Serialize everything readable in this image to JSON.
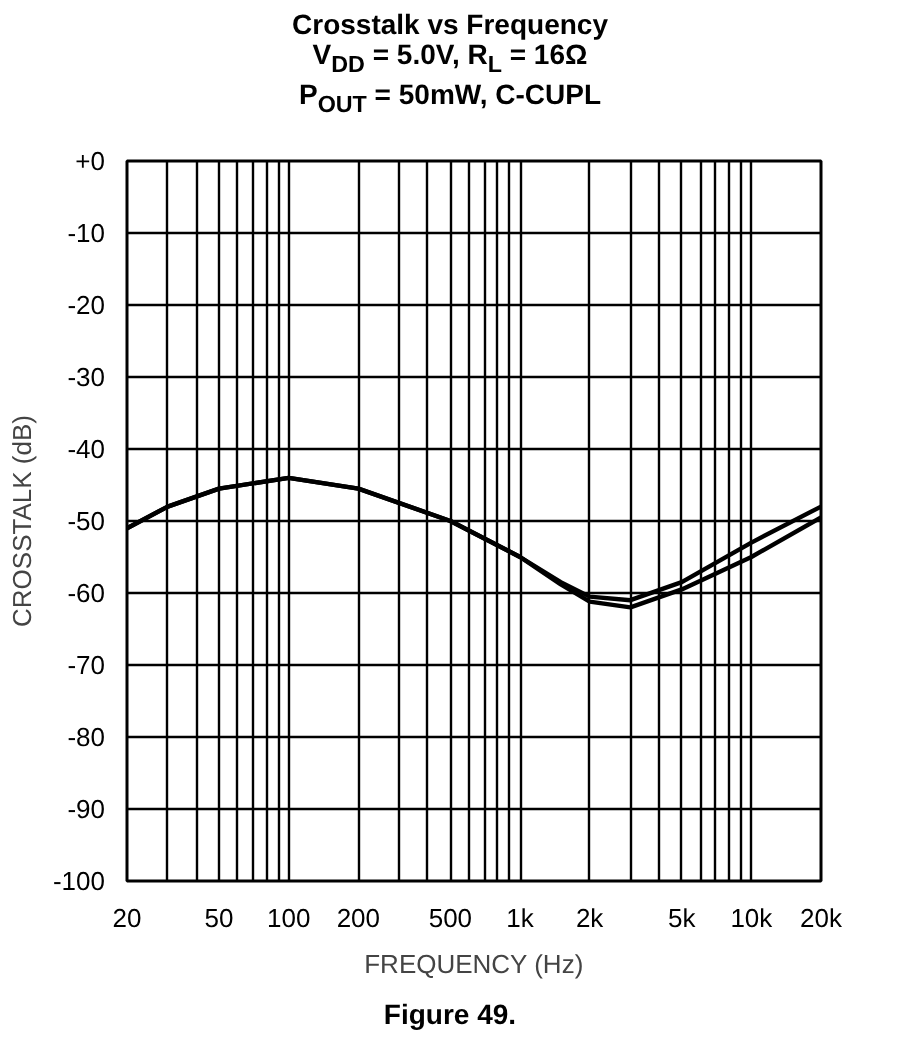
{
  "chart_data": {
    "type": "line",
    "title": "Crosstalk vs Frequency\nV$_{DD}$ = 5.0V, R$_{L}$ = 16Ω\nP$_{OUT}$ = 50mW, C-CUPL",
    "xlabel": "FREQUENCY (Hz)",
    "ylabel": "CROSSTALK (dB)",
    "annotations": [
      "Figure 49."
    ],
    "log": "x",
    "grid": true,
    "xlim": [
      20,
      20000
    ],
    "ylim": [
      -100,
      0
    ],
    "xticks": [
      20,
      {
        "value": 30,
        "label": null
      },
      {
        "value": 40,
        "label": null
      },
      50,
      {
        "value": 60,
        "label": null
      },
      {
        "value": 70,
        "label": null
      },
      {
        "value": 80,
        "label": null
      },
      {
        "value": 90,
        "label": null
      },
      100,
      200,
      {
        "value": 300,
        "label": null
      },
      {
        "value": 400,
        "label": null
      },
      500,
      {
        "value": 600,
        "label": null
      },
      {
        "value": 700,
        "label": null
      },
      {
        "value": 800,
        "label": null
      },
      {
        "value": 900,
        "label": null
      },
      {
        "value": 1000,
        "label": "1k"
      },
      {
        "value": 2000,
        "label": "2k"
      },
      {
        "value": 3000,
        "label": null
      },
      {
        "value": 4000,
        "label": null
      },
      {
        "value": 5000,
        "label": "5k"
      },
      {
        "value": 6000,
        "label": null
      },
      {
        "value": 7000,
        "label": null
      },
      {
        "value": 8000,
        "label": null
      },
      {
        "value": 9000,
        "label": null
      },
      {
        "value": 10000,
        "label": "10k"
      },
      {
        "value": 20000,
        "label": "20k"
      }
    ],
    "yticks": [
      -100,
      -90,
      -80,
      -70,
      -60,
      -50,
      -40,
      -30,
      -20,
      -10,
      {
        "value": 0,
        "label": "+0"
      }
    ],
    "x": [
      20,
      30,
      50,
      100,
      200,
      500,
      1000,
      1500,
      2000,
      3000,
      5000,
      10000,
      20000
    ],
    "series": [
      {
        "color": "#000000",
        "values": [
          -51,
          -48,
          -45.5,
          -44,
          -45.5,
          -50,
          -55,
          -58.5,
          -60.5,
          -61,
          -58.5,
          -53,
          -48
        ]
      },
      {
        "color": "#000000",
        "values": [
          -51,
          -48,
          -45.5,
          -44,
          -45.5,
          -50,
          -55,
          -58.8,
          -61.2,
          -62,
          -59.5,
          -55,
          -49.5
        ]
      }
    ]
  }
}
